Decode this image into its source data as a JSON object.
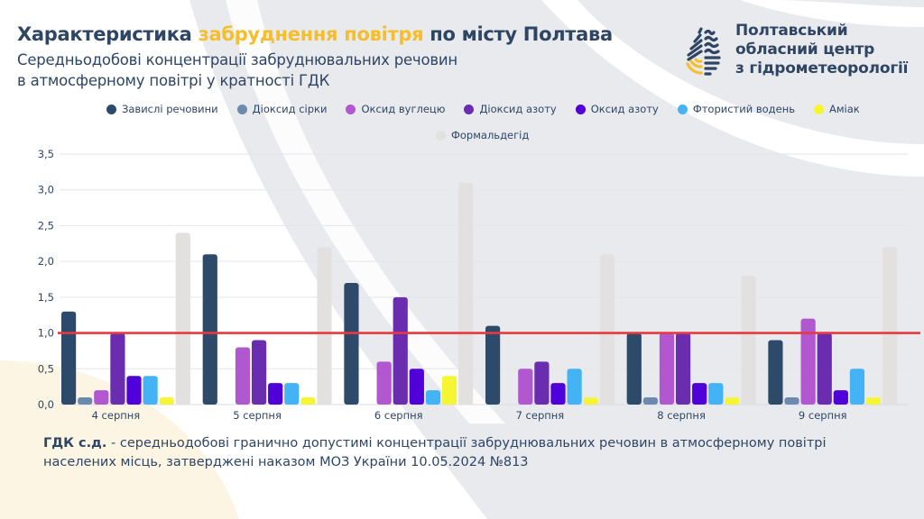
{
  "header": {
    "title_part1": "Характеристика ",
    "title_accent": "забруднення повітря",
    "title_part2": " по місту Полтава",
    "subtitle_line1": "Середньодобові концентрації забруднювальних речовин",
    "subtitle_line2": "в атмосферному повітрі у кратності ГДК"
  },
  "organization": {
    "logo_icon": "water-drop-logo-icon",
    "name_line1": "Полтавський",
    "name_line2": "обласний центр",
    "name_line3": "з гідрометеорології"
  },
  "colors": {
    "primary": "#2e4564",
    "accent": "#f5be2c",
    "threshold_line": "#e8393f",
    "background_shape": "#e9eaee",
    "background_warm": "#fdf5e3"
  },
  "chart_data": {
    "type": "bar",
    "title": "Середньодобові концентрації забруднювальних речовин в атмосферному повітрі у кратності ГДК",
    "xlabel": "",
    "ylabel": "",
    "ylim": [
      0,
      3.5
    ],
    "yticks": [
      "0,0",
      "0,5",
      "1,0",
      "1,5",
      "2,0",
      "2,5",
      "3,0",
      "3,5"
    ],
    "ytick_values": [
      0,
      0.5,
      1.0,
      1.5,
      2.0,
      2.5,
      3.0,
      3.5
    ],
    "grid": true,
    "legend_position": "top-center",
    "threshold": {
      "value": 1.0,
      "label": "ГДК",
      "color": "#e8393f"
    },
    "categories": [
      "4 серпня",
      "5 серпня",
      "6 серпня",
      "7 серпня",
      "8 серпня",
      "9 серпня"
    ],
    "series": [
      {
        "name": "Завислі речовини",
        "color": "#2e4a6b",
        "values": [
          1.3,
          2.1,
          1.7,
          1.1,
          1.0,
          0.9
        ]
      },
      {
        "name": "Діоксид сірки",
        "color": "#6b8aae",
        "values": [
          0.1,
          0.0,
          0.0,
          0.0,
          0.1,
          0.1
        ]
      },
      {
        "name": "Оксид вуглецю",
        "color": "#b157cf",
        "values": [
          0.2,
          0.8,
          0.6,
          0.5,
          1.0,
          1.2
        ]
      },
      {
        "name": "Діоксид азоту",
        "color": "#6a2db0",
        "values": [
          1.0,
          0.9,
          1.5,
          0.6,
          1.0,
          1.0
        ]
      },
      {
        "name": "Оксид азоту",
        "color": "#5000d8",
        "values": [
          0.4,
          0.3,
          0.5,
          0.3,
          0.3,
          0.2
        ]
      },
      {
        "name": "Фтористий водень",
        "color": "#43b3f5",
        "values": [
          0.4,
          0.3,
          0.2,
          0.5,
          0.3,
          0.5
        ]
      },
      {
        "name": "Аміак",
        "color": "#f5f532",
        "values": [
          0.1,
          0.1,
          0.4,
          0.1,
          0.1,
          0.1
        ]
      },
      {
        "name": "Формальдегід",
        "color": "#e3e1e0",
        "values": [
          2.4,
          2.2,
          3.1,
          2.1,
          1.8,
          2.2
        ]
      }
    ]
  },
  "footnote": {
    "term": "ГДК с.д.",
    "text_line1": " - середньодобові гранично допустимі концентрації забруднювальних речовин в атмосферному повітрі",
    "text_line2": "населених місць, затверджені наказом МОЗ України 10.05.2024 №813"
  }
}
